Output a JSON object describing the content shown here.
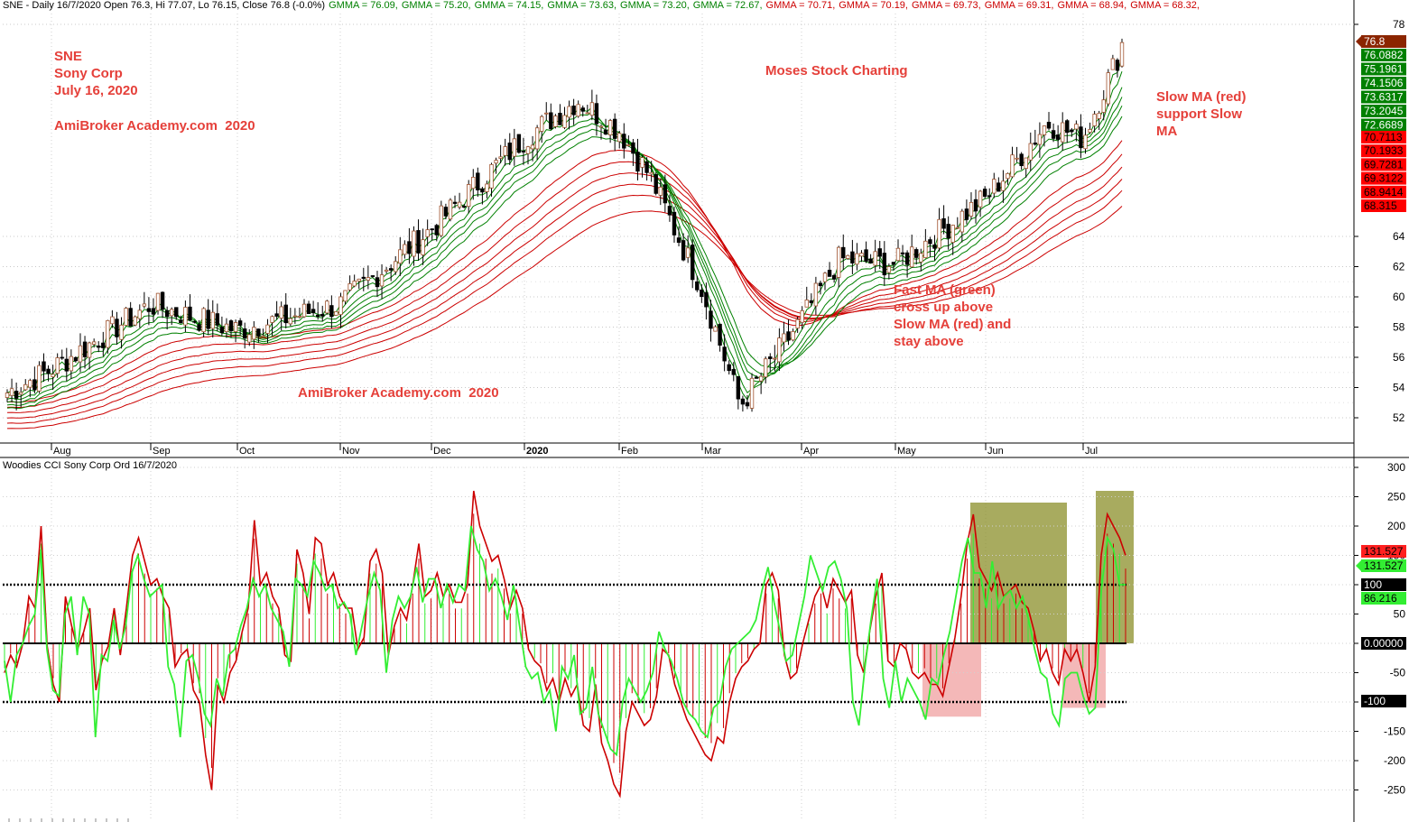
{
  "header": {
    "symbol_info": "SNE - Daily 16/7/2020 Open 76.3, Hi 77.07, Lo 76.15, Close 76.8 (-0.0%)",
    "gmma_labels": [
      {
        "text": "GMMA = 76.09",
        "color": "#008000"
      },
      {
        "text": "GMMA = 75.20",
        "color": "#008000"
      },
      {
        "text": "GMMA = 74.15",
        "color": "#008000"
      },
      {
        "text": "GMMA = 73.63",
        "color": "#008000"
      },
      {
        "text": "GMMA = 73.20",
        "color": "#008000"
      },
      {
        "text": "GMMA = 72.67",
        "color": "#008000"
      },
      {
        "text": "GMMA = 70.71",
        "color": "#cc0000"
      },
      {
        "text": "GMMA = 70.19",
        "color": "#cc0000"
      },
      {
        "text": "GMMA = 69.73",
        "color": "#cc0000"
      },
      {
        "text": "GMMA = 69.31",
        "color": "#cc0000"
      },
      {
        "text": "GMMA = 68.94",
        "color": "#cc0000"
      },
      {
        "text": "GMMA = 68.32",
        "color": "#cc0000"
      }
    ]
  },
  "annotations": {
    "title_block": "SNE\nSony Corp\nJuly 16, 2020",
    "academy_top": "AmiBroker Academy.com  2020",
    "moses": "Moses Stock Charting",
    "slow_ma_note": "Slow MA (red)\nsupport Slow\nMA",
    "fast_ma_note": "Fast MA (green)\ncross up above\nSlow MA (red) and\nstay above",
    "academy_mid": "AmiBroker Academy.com  2020"
  },
  "sub_header": "Woodies CCI  Sony Corp Ord 16/7/2020",
  "chart_data": [
    {
      "type": "candlestick",
      "title": "SNE - Daily",
      "x_tick_labels": [
        "Aug",
        "Sep",
        "Oct",
        "Nov",
        "Dec",
        "2020",
        "Feb",
        "Mar",
        "Apr",
        "May",
        "Jun",
        "Jul"
      ],
      "y_ticks": [
        52,
        54,
        56,
        58,
        60,
        62,
        64,
        78
      ],
      "ylim": [
        50.5,
        79
      ],
      "close_key_points": [
        [
          "Jul",
          53.5
        ],
        [
          "Aug",
          55.2
        ],
        [
          "Sep",
          59.5
        ],
        [
          "Oct",
          57.8
        ],
        [
          "Nov",
          59.5
        ],
        [
          "Dec",
          64.5
        ],
        [
          "2020",
          70.5
        ],
        [
          "Jan-mid",
          73.0
        ],
        [
          "Feb",
          71.0
        ],
        [
          "Feb-mid",
          68.0
        ],
        [
          "Mar",
          60.5
        ],
        [
          "Mar-mid",
          52.8
        ],
        [
          "Apr",
          58.5
        ],
        [
          "Apr-mid",
          62.5
        ],
        [
          "May",
          62.2
        ],
        [
          "Jun",
          66.5
        ],
        [
          "Jun-mid",
          71.5
        ],
        [
          "Jul",
          70.5
        ],
        [
          "Jul-16",
          76.8
        ]
      ],
      "gmma_fast_last": [
        76.0882,
        75.1961,
        74.1506,
        73.6317,
        73.2045,
        72.6689
      ],
      "gmma_slow_last": [
        70.7113,
        70.1933,
        69.7281,
        69.3122,
        68.9414,
        68.315
      ],
      "last_price": 76.8,
      "value_labels": {
        "last": "76.8",
        "fast": [
          "76.0882",
          "75.1961",
          "74.1506",
          "73.6317",
          "73.2045",
          "72.6689"
        ],
        "slow": [
          "70.7113",
          "70.1933",
          "69.7281",
          "69.3122",
          "68.9414",
          "68.315"
        ]
      },
      "colors": {
        "fast": "#008000",
        "slow": "#cc0000",
        "up": "#ffffff",
        "down": "#000000"
      }
    },
    {
      "type": "line",
      "title": "Woodies CCI",
      "y_ticks": [
        300,
        250,
        200,
        150,
        100,
        50,
        0,
        -50,
        -100,
        -150,
        -200,
        -250
      ],
      "y_tick_labels": [
        "300",
        "250",
        "200",
        "150",
        "100",
        "50",
        "0.00000",
        "-50",
        "-100",
        "-150",
        "-200",
        "-250"
      ],
      "ylim": [
        -300,
        305
      ],
      "reference_lines": [
        100,
        0,
        -100
      ],
      "series": [
        {
          "color": "#cc0000",
          "values": [
            -50,
            -20,
            -40,
            0,
            80,
            60,
            200,
            -5,
            -70,
            -100,
            80,
            30,
            -10,
            20,
            60,
            -80,
            -30,
            -5,
            60,
            -20,
            60,
            150,
            180,
            140,
            100,
            110,
            80,
            60,
            -40,
            -20,
            -10,
            -80,
            -100,
            -190,
            -250,
            -70,
            -100,
            -50,
            -30,
            20,
            60,
            210,
            100,
            120,
            80,
            60,
            -20,
            -30,
            160,
            120,
            50,
            180,
            170,
            100,
            120,
            80,
            60,
            60,
            -10,
            10,
            140,
            160,
            120,
            -20,
            30,
            60,
            40,
            100,
            170,
            80,
            90,
            120,
            80,
            100,
            70,
            70,
            100,
            260,
            200,
            170,
            140,
            150,
            110,
            60,
            90,
            60,
            -10,
            -30,
            -40,
            -80,
            -60,
            -100,
            -60,
            -90,
            -70,
            -140,
            -150,
            -70,
            -170,
            -200,
            -240,
            -260,
            -150,
            -100,
            -120,
            -140,
            -130,
            -90,
            -10,
            -20,
            -70,
            -100,
            -130,
            -150,
            -170,
            -190,
            -200,
            -160,
            -170,
            -100,
            -60,
            -40,
            -30,
            -10,
            0,
            100,
            120,
            90,
            -20,
            -60,
            -50,
            0,
            40,
            80,
            100,
            60,
            110,
            90,
            70,
            90,
            -20,
            -50,
            20,
            80,
            120,
            -30,
            -40,
            0,
            -10,
            -50,
            -60,
            -50,
            -70,
            -70,
            -90,
            -40,
            10,
            80,
            170,
            220,
            130,
            110,
            90,
            120,
            80,
            90,
            100,
            70,
            60,
            20,
            -30,
            -10,
            -50,
            -70,
            -10,
            -30,
            -10,
            -50,
            -100,
            -40,
            150,
            220,
            200,
            180,
            150
          ]
        },
        {
          "color": "#33ee33",
          "values": [
            -30,
            -100,
            -20,
            0,
            30,
            50,
            160,
            -10,
            -80,
            -90,
            50,
            80,
            -20,
            80,
            50,
            -160,
            -20,
            -30,
            40,
            -10,
            30,
            120,
            150,
            110,
            80,
            90,
            100,
            -40,
            -70,
            -160,
            -30,
            -20,
            -60,
            -120,
            -140,
            -60,
            -90,
            -20,
            -10,
            30,
            60,
            110,
            80,
            100,
            60,
            40,
            20,
            -40,
            110,
            100,
            80,
            140,
            120,
            90,
            100,
            60,
            70,
            50,
            -20,
            30,
            80,
            120,
            90,
            -50,
            40,
            80,
            60,
            80,
            130,
            70,
            110,
            110,
            60,
            100,
            70,
            100,
            90,
            200,
            160,
            140,
            90,
            110,
            80,
            40,
            100,
            30,
            -40,
            -60,
            -50,
            -100,
            -80,
            -150,
            -40,
            -60,
            -20,
            -120,
            -110,
            -40,
            -120,
            -150,
            -180,
            -190,
            -100,
            -60,
            -80,
            -100,
            -80,
            -50,
            20,
            -10,
            -30,
            -60,
            -100,
            -120,
            -130,
            -150,
            -160,
            -110,
            -100,
            -40,
            -10,
            0,
            10,
            20,
            40,
            90,
            130,
            70,
            20,
            -30,
            -20,
            30,
            80,
            150,
            120,
            90,
            130,
            140,
            110,
            60,
            -100,
            -140,
            -40,
            40,
            110,
            -60,
            -110,
            -30,
            -100,
            -60,
            -80,
            -100,
            -130,
            -60,
            -70,
            -20,
            20,
            80,
            140,
            180,
            120,
            120,
            60,
            140,
            60,
            80,
            90,
            60,
            80,
            40,
            -10,
            -50,
            -60,
            -120,
            -140,
            -60,
            -50,
            -50,
            -90,
            -120,
            -110,
            90,
            180,
            160,
            100,
            100
          ]
        }
      ],
      "colors": {
        "pos_hist": "#cc0000",
        "neg_hist": "#cc0000",
        "green_hist": "#33ee33"
      },
      "highlight_zones": [
        {
          "label": "buy-zone-1",
          "color": "#8b8f2a"
        },
        {
          "label": "sell-zone-1",
          "color": "#f0a0a0"
        },
        {
          "label": "buy-zone-2",
          "color": "#8b8f2a"
        },
        {
          "label": "sell-zone-2",
          "color": "#f0a0a0"
        }
      ],
      "value_labels": {
        "red": "131.527",
        "green": "131.527",
        "ref100": "100",
        "green2": "86.216",
        "zero": "0.00000",
        "refm100": "-100"
      }
    }
  ]
}
